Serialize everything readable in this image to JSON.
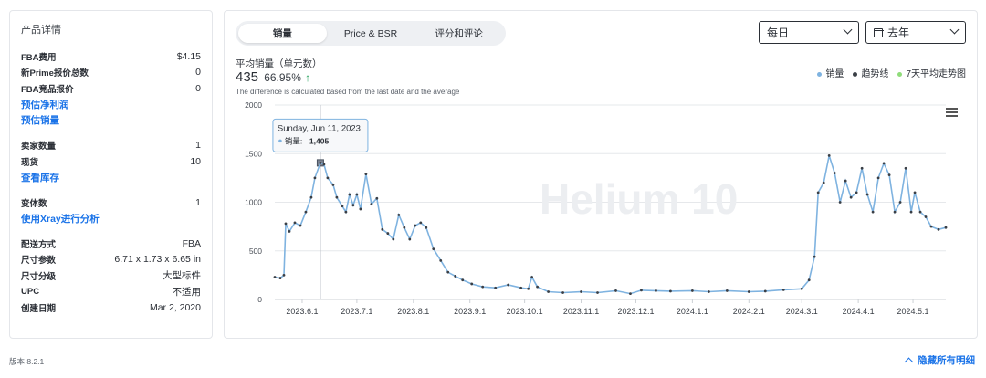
{
  "product_details": {
    "title": "产品详情",
    "group1": [
      {
        "label": "FBA费用",
        "value": "$4.15"
      },
      {
        "label": "新Prime报价总数",
        "value": "0"
      },
      {
        "label": "FBA竞品报价",
        "value": "0"
      }
    ],
    "link_profit": "预估净利润",
    "link_sales": "预估销量",
    "group2": [
      {
        "label": "卖家数量",
        "value": "1"
      },
      {
        "label": "现货",
        "value": "10"
      }
    ],
    "link_inventory": "查看库存",
    "group3": [
      {
        "label": "变体数",
        "value": "1"
      }
    ],
    "link_xray": "使用Xray进行分析",
    "group4": [
      {
        "label": "配送方式",
        "value": "FBA"
      },
      {
        "label": "尺寸参数",
        "value": "6.71 x 1.73 x 6.65 in"
      },
      {
        "label": "尺寸分级",
        "value": "大型标件"
      },
      {
        "label": "UPC",
        "value": "不适用"
      },
      {
        "label": "创建日期",
        "value": "Mar 2, 2020"
      }
    ]
  },
  "tabs": [
    "销量",
    "Price & BSR",
    "评分和评论"
  ],
  "selects": {
    "interval": "每日",
    "range": "去年"
  },
  "summary": {
    "title": "平均销量（单元数）",
    "value": "435",
    "percent": "66.95%",
    "arrow": "↑",
    "note": "The difference is calculated based from the last date and the average"
  },
  "legend": [
    {
      "name": "销量",
      "color": "#7fb3e0"
    },
    {
      "name": "趋势线",
      "color": "#3a3f46"
    },
    {
      "name": "7天平均走势图",
      "color": "#8fdc7a"
    }
  ],
  "tooltip": {
    "date": "Sunday, Jun 11, 2023",
    "label": "销量:",
    "value": "1,405"
  },
  "watermark": "Helium 10",
  "footer": {
    "version": "版本 8.2.1",
    "hide_details": "隐藏所有明细"
  },
  "chart_data": {
    "type": "line",
    "ylim": [
      0,
      2000
    ],
    "yticks": [
      0,
      500,
      1000,
      1500,
      2000
    ],
    "xticks": [
      "2023.6.1",
      "2023.7.1",
      "2023.8.1",
      "2023.9.1",
      "2023.10.1",
      "2023.11.1",
      "2023.12.1",
      "2024.1.1",
      "2024.2.1",
      "2024.3.1",
      "2024.4.1",
      "2024.5.1"
    ],
    "x_start": "2023-05-17",
    "x_end": "2024-05-19",
    "series": [
      {
        "name": "销量",
        "points": [
          [
            "2023-05-17",
            230
          ],
          [
            "2023-05-20",
            220
          ],
          [
            "2023-05-22",
            250
          ],
          [
            "2023-05-23",
            780
          ],
          [
            "2023-05-25",
            700
          ],
          [
            "2023-05-28",
            790
          ],
          [
            "2023-05-31",
            760
          ],
          [
            "2023-06-03",
            900
          ],
          [
            "2023-06-06",
            1050
          ],
          [
            "2023-06-08",
            1250
          ],
          [
            "2023-06-11",
            1405
          ],
          [
            "2023-06-13",
            1390
          ],
          [
            "2023-06-15",
            1250
          ],
          [
            "2023-06-18",
            1180
          ],
          [
            "2023-06-20",
            1050
          ],
          [
            "2023-06-23",
            960
          ],
          [
            "2023-06-25",
            900
          ],
          [
            "2023-06-27",
            1080
          ],
          [
            "2023-06-29",
            970
          ],
          [
            "2023-07-01",
            1080
          ],
          [
            "2023-07-03",
            930
          ],
          [
            "2023-07-06",
            1290
          ],
          [
            "2023-07-09",
            980
          ],
          [
            "2023-07-12",
            1040
          ],
          [
            "2023-07-15",
            720
          ],
          [
            "2023-07-18",
            680
          ],
          [
            "2023-07-21",
            620
          ],
          [
            "2023-07-24",
            870
          ],
          [
            "2023-07-27",
            740
          ],
          [
            "2023-07-30",
            620
          ],
          [
            "2023-08-02",
            760
          ],
          [
            "2023-08-05",
            790
          ],
          [
            "2023-08-08",
            740
          ],
          [
            "2023-08-12",
            520
          ],
          [
            "2023-08-16",
            400
          ],
          [
            "2023-08-20",
            280
          ],
          [
            "2023-08-24",
            240
          ],
          [
            "2023-08-28",
            200
          ],
          [
            "2023-09-02",
            160
          ],
          [
            "2023-09-08",
            130
          ],
          [
            "2023-09-15",
            120
          ],
          [
            "2023-09-22",
            150
          ],
          [
            "2023-09-29",
            120
          ],
          [
            "2023-10-03",
            110
          ],
          [
            "2023-10-05",
            230
          ],
          [
            "2023-10-08",
            130
          ],
          [
            "2023-10-14",
            80
          ],
          [
            "2023-10-22",
            70
          ],
          [
            "2023-11-01",
            80
          ],
          [
            "2023-11-10",
            70
          ],
          [
            "2023-11-20",
            90
          ],
          [
            "2023-11-28",
            60
          ],
          [
            "2023-12-04",
            95
          ],
          [
            "2023-12-12",
            90
          ],
          [
            "2023-12-20",
            85
          ],
          [
            "2024-01-01",
            90
          ],
          [
            "2024-01-10",
            80
          ],
          [
            "2024-01-20",
            90
          ],
          [
            "2024-02-01",
            80
          ],
          [
            "2024-02-10",
            85
          ],
          [
            "2024-02-20",
            100
          ],
          [
            "2024-03-01",
            110
          ],
          [
            "2024-03-05",
            200
          ],
          [
            "2024-03-08",
            440
          ],
          [
            "2024-03-10",
            1100
          ],
          [
            "2024-03-13",
            1200
          ],
          [
            "2024-03-16",
            1480
          ],
          [
            "2024-03-19",
            1300
          ],
          [
            "2024-03-22",
            1000
          ],
          [
            "2024-03-25",
            1220
          ],
          [
            "2024-03-28",
            1050
          ],
          [
            "2024-03-31",
            1100
          ],
          [
            "2024-04-03",
            1350
          ],
          [
            "2024-04-06",
            1080
          ],
          [
            "2024-04-09",
            900
          ],
          [
            "2024-04-12",
            1250
          ],
          [
            "2024-04-15",
            1400
          ],
          [
            "2024-04-18",
            1280
          ],
          [
            "2024-04-21",
            900
          ],
          [
            "2024-04-24",
            1000
          ],
          [
            "2024-04-27",
            1350
          ],
          [
            "2024-04-30",
            900
          ],
          [
            "2024-05-02",
            1100
          ],
          [
            "2024-05-05",
            900
          ],
          [
            "2024-05-08",
            850
          ],
          [
            "2024-05-11",
            750
          ],
          [
            "2024-05-15",
            720
          ],
          [
            "2024-05-19",
            740
          ]
        ]
      }
    ]
  }
}
